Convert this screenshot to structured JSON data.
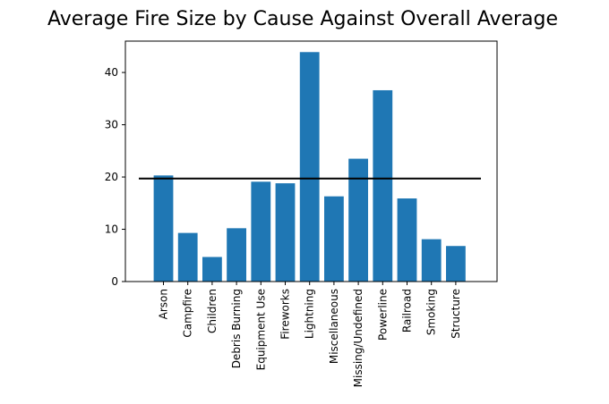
{
  "chart_data": {
    "type": "bar",
    "title": "Average Fire Size by Cause Against Overall Average",
    "xlabel": "",
    "ylabel": "",
    "categories": [
      "Arson",
      "Campfire",
      "Children",
      "Debris Burning",
      "Equipment Use",
      "Fireworks",
      "Lightning",
      "Miscellaneous",
      "Missing/Undefined",
      "Powerline",
      "Railroad",
      "Smoking",
      "Structure"
    ],
    "values": [
      20.3,
      9.3,
      4.7,
      10.2,
      19.1,
      18.8,
      43.9,
      16.3,
      23.5,
      36.6,
      15.9,
      8.1,
      6.8
    ],
    "ylim": [
      0,
      46
    ],
    "yticks": [
      0,
      10,
      20,
      30,
      40
    ],
    "reference_line": {
      "y": 19.7
    },
    "grid": false,
    "legend": "none",
    "colors": {
      "bar": "#1f77b4",
      "reference_line": "#000000",
      "axes": "#000000",
      "text": "#000000"
    }
  }
}
